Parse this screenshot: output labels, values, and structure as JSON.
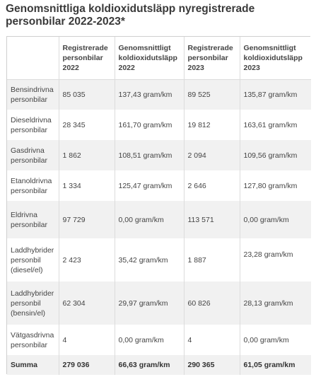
{
  "title": "Genomsnittliga koldioxidutsläpp nyregistrerade personbilar 2022-2023*",
  "table": {
    "headers": [
      "",
      "Registrerade personbilar 2022",
      "Genomsnittligt koldioxidutsläpp 2022",
      "Registrerade personbilar 2023",
      "Genomsnittligt koldioxidutsläpp 2023"
    ],
    "rows": [
      [
        "Bensindrivna personbilar",
        "85 035",
        "137,43 gram/km",
        "89 525",
        "135,87 gram/km"
      ],
      [
        "Dieseldrivna personbilar",
        "28 345",
        "161,70 gram/km",
        "19 812",
        "163,61 gram/km"
      ],
      [
        "Gasdrivna personbilar",
        "1 862",
        "108,51 gram/km",
        "2 094",
        "109,56 gram/km"
      ],
      [
        "Etanoldrivna personbilar",
        "1 334",
        "125,47 gram/km",
        "2 646",
        "127,80 gram/km"
      ],
      [
        "Eldrivna personbilar",
        "97 729",
        "0,00 gram/km",
        "113 571",
        "0,00 gram/km"
      ],
      [
        "Laddhybrider personbil (diesel/el)",
        "2 423",
        "35,42 gram/km",
        "1 887",
        "23,28 gram/km"
      ],
      [
        "Laddhybrider personbil (bensin/el)",
        "62 304",
        "29,97 gram/km",
        "60 826",
        "28,13 gram/km"
      ],
      [
        "Vätgasdrivna personbilar",
        "4",
        "0,00 gram/km",
        "4",
        "0,00 gram/km"
      ]
    ],
    "total": [
      "Summa",
      "279 036",
      "66,63 gram/km",
      "290 365",
      "61,05 gram/km"
    ]
  }
}
